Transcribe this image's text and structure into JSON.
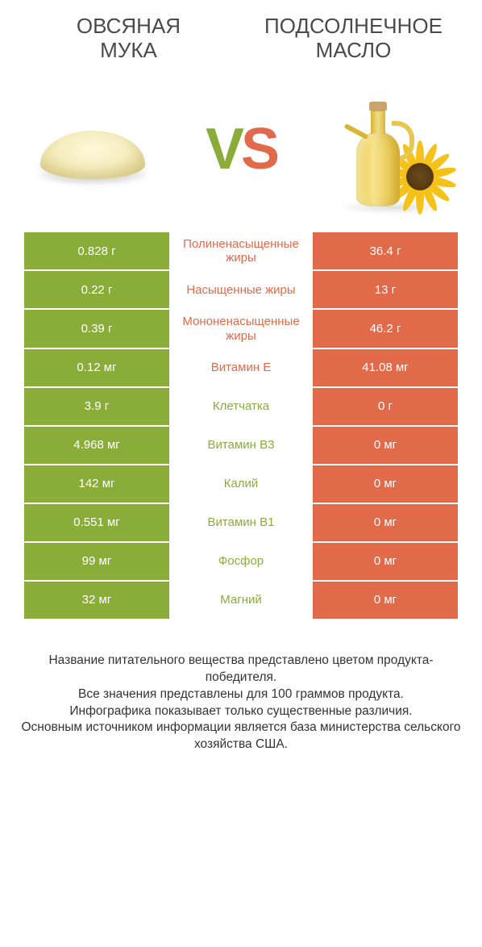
{
  "colors": {
    "green": "#8aad3a",
    "orange": "#e06a4a",
    "mid_bg": "#ffffff",
    "text_dark": "#333333"
  },
  "products": {
    "left": {
      "name": "ОВСЯНАЯ\nМУКА"
    },
    "right": {
      "name": "ПОДСОЛНЕЧНОЕ\nМАСЛО"
    }
  },
  "vs": {
    "v": "V",
    "s": "S"
  },
  "table": {
    "left_color": "#8aad3a",
    "right_color": "#e06a4a",
    "rows": [
      {
        "left": "0.828 г",
        "mid": "Полиненасыщенные жиры",
        "right": "36.4 г",
        "winner": "right"
      },
      {
        "left": "0.22 г",
        "mid": "Насыщенные жиры",
        "right": "13 г",
        "winner": "right"
      },
      {
        "left": "0.39 г",
        "mid": "Мононенасыщенные жиры",
        "right": "46.2 г",
        "winner": "right"
      },
      {
        "left": "0.12 мг",
        "mid": "Витамин E",
        "right": "41.08 мг",
        "winner": "right"
      },
      {
        "left": "3.9 г",
        "mid": "Клетчатка",
        "right": "0 г",
        "winner": "left"
      },
      {
        "left": "4.968 мг",
        "mid": "Витамин B3",
        "right": "0 мг",
        "winner": "left"
      },
      {
        "left": "142 мг",
        "mid": "Калий",
        "right": "0 мг",
        "winner": "left"
      },
      {
        "left": "0.551 мг",
        "mid": "Витамин B1",
        "right": "0 мг",
        "winner": "left"
      },
      {
        "left": "99 мг",
        "mid": "Фосфор",
        "right": "0 мг",
        "winner": "left"
      },
      {
        "left": "32 мг",
        "mid": "Магний",
        "right": "0 мг",
        "winner": "left"
      }
    ]
  },
  "footer": {
    "line1": "Название питательного вещества представлено цветом продукта-победителя.",
    "line2": "Все значения представлены для 100 граммов продукта.",
    "line3": "Инфографика показывает только существенные различия.",
    "line4": "Основным источником информации является база министерства сельского хозяйства США."
  }
}
